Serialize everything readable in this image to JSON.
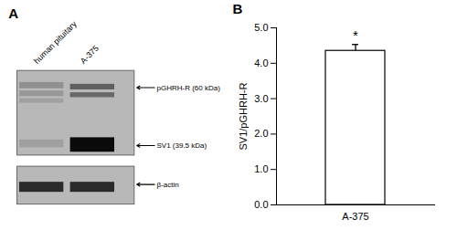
{
  "chart_data": [
    {
      "type": "blot",
      "title": "A",
      "categories": [
        "human pituitary",
        "A-375"
      ],
      "annotations": [
        "pGHRH-R (60 kDa)",
        "SV1 (39.5 kDa)",
        "β-actin"
      ]
    },
    {
      "type": "bar",
      "title": "B",
      "categories": [
        "A-375"
      ],
      "values": [
        4.35
      ],
      "errors": [
        0.18
      ],
      "color": "#ffffff",
      "ylabel": "SV1/pGHRH-R",
      "ylim": [
        0,
        5
      ],
      "yticks": [
        0,
        1,
        2,
        3,
        4,
        5
      ],
      "annotations": [
        "*"
      ],
      "grid": false
    }
  ]
}
